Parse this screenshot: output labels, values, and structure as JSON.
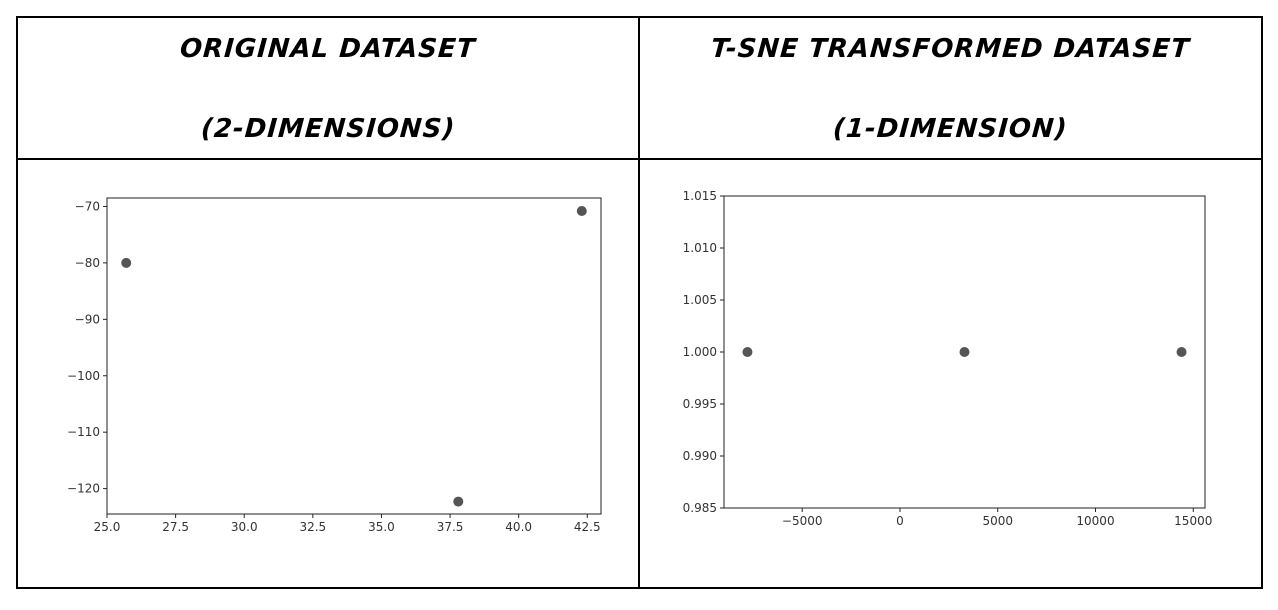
{
  "headers": {
    "left_line1": "Original Dataset",
    "left_line2": "(2-Dimensions)",
    "right_line1": "t-SNE Transformed Dataset",
    "right_line2": "(1-Dimension)"
  },
  "colors": {
    "point": "#555555",
    "axis": "#222222"
  },
  "chart_data": [
    {
      "type": "scatter",
      "title": "",
      "xlabel": "",
      "ylabel": "",
      "xlim": [
        25.0,
        43.0
      ],
      "ylim": [
        -124.5,
        -68.5
      ],
      "xticks": [
        25.0,
        27.5,
        30.0,
        32.5,
        35.0,
        37.5,
        40.0,
        42.5
      ],
      "xtick_labels": [
        "25.0",
        "27.5",
        "30.0",
        "32.5",
        "35.0",
        "37.5",
        "40.0",
        "42.5"
      ],
      "yticks": [
        -70,
        -80,
        -90,
        -100,
        -110,
        -120
      ],
      "ytick_labels": [
        "−70",
        "−80",
        "−90",
        "−100",
        "−110",
        "−120"
      ],
      "points": [
        {
          "x": 25.7,
          "y": -80.0
        },
        {
          "x": 37.8,
          "y": -122.3
        },
        {
          "x": 42.3,
          "y": -70.8
        }
      ],
      "grid": false
    },
    {
      "type": "scatter",
      "title": "",
      "xlabel": "",
      "ylabel": "",
      "xlim": [
        -9000,
        15600
      ],
      "ylim": [
        0.985,
        1.015
      ],
      "xticks": [
        -5000,
        0,
        5000,
        10000,
        15000
      ],
      "xtick_labels": [
        "−5000",
        "0",
        "5000",
        "10000",
        "15000"
      ],
      "yticks": [
        1.015,
        1.01,
        1.005,
        1.0,
        0.995,
        0.99,
        0.985
      ],
      "ytick_labels": [
        "1.015",
        "1.010",
        "1.005",
        "1.000",
        "0.995",
        "0.990",
        "0.985"
      ],
      "points": [
        {
          "x": -7800,
          "y": 1.0
        },
        {
          "x": 3300,
          "y": 1.0
        },
        {
          "x": 14400,
          "y": 1.0
        }
      ],
      "grid": false
    }
  ]
}
